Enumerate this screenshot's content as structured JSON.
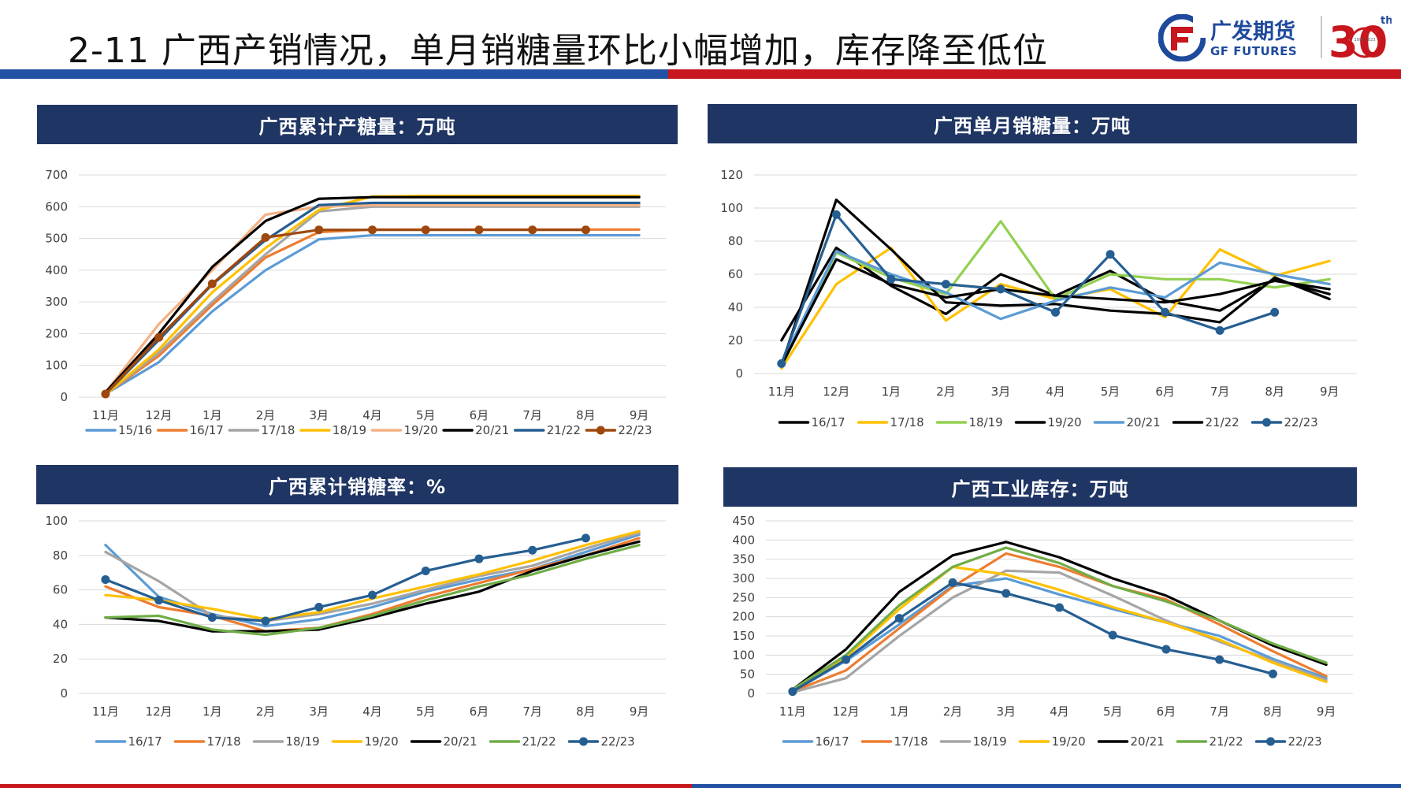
{
  "slide": {
    "title": "2-11 广西产销情况，单月销糖量环比小幅增加，库存降至低位"
  },
  "logo": {
    "name_cn": "广发期货",
    "name_en": "GF FUTURES",
    "anniversary_text": "30",
    "anniversary_suffix": "th",
    "anniversary_years": "1993 2023"
  },
  "colors": {
    "title_bar": "#1f3563",
    "top_bar_blue": "#2351a3",
    "top_bar_red": "#c8161e"
  },
  "chart_data": [
    {
      "type": "line",
      "title": "广西累计产糖量：万吨",
      "categories": [
        "11月",
        "12月",
        "1月",
        "2月",
        "3月",
        "4月",
        "5月",
        "6月",
        "7月",
        "8月",
        "9月"
      ],
      "ylim": [
        0,
        700
      ],
      "yticks": [
        0,
        100,
        200,
        300,
        400,
        500,
        600,
        700
      ],
      "grid": true,
      "legend_position": "bottom",
      "series": [
        {
          "name": "15/16",
          "color": "#5b9bd5",
          "marker": false,
          "values": [
            10,
            110,
            270,
            400,
            497,
            510,
            510,
            510,
            510,
            510,
            510
          ]
        },
        {
          "name": "16/17",
          "color": "#ed7d31",
          "marker": false,
          "values": [
            10,
            130,
            290,
            440,
            520,
            528,
            528,
            528,
            528,
            528,
            528
          ]
        },
        {
          "name": "17/18",
          "color": "#a5a5a5",
          "marker": false,
          "values": [
            10,
            140,
            300,
            450,
            585,
            600,
            600,
            600,
            600,
            600,
            600
          ]
        },
        {
          "name": "18/19",
          "color": "#ffc000",
          "marker": false,
          "values": [
            8,
            150,
            330,
            470,
            590,
            632,
            634,
            634,
            634,
            634,
            634
          ]
        },
        {
          "name": "19/20",
          "color": "#f4b183",
          "marker": false,
          "values": [
            15,
            230,
            400,
            575,
            600,
            605,
            605,
            605,
            605,
            605,
            605
          ]
        },
        {
          "name": "20/21",
          "color": "#000000",
          "marker": false,
          "values": [
            15,
            200,
            410,
            555,
            625,
            630,
            630,
            630,
            630,
            630,
            630
          ]
        },
        {
          "name": "21/22",
          "color": "#255e91",
          "marker": false,
          "values": [
            10,
            180,
            355,
            495,
            605,
            612,
            612,
            612,
            612,
            612,
            612
          ]
        },
        {
          "name": "22/23",
          "color": "#9e480e",
          "marker": true,
          "values": [
            10,
            188,
            357,
            503,
            527,
            527,
            527,
            527,
            527,
            527,
            null
          ]
        }
      ]
    },
    {
      "type": "line",
      "title": "广西单月销糖量：万吨",
      "categories": [
        "11月",
        "12月",
        "1月",
        "2月",
        "3月",
        "4月",
        "5月",
        "6月",
        "7月",
        "8月",
        "9月"
      ],
      "ylim": [
        0,
        120
      ],
      "yticks": [
        0,
        20,
        40,
        60,
        80,
        100,
        120
      ],
      "grid": true,
      "legend_position": "bottom",
      "series": [
        {
          "name": "16/17",
          "color": "#000000",
          "marker": false,
          "values": [
            20,
            76,
            53,
            36,
            60,
            47,
            62,
            44,
            38,
            57,
            48
          ]
        },
        {
          "name": "17/18",
          "color": "#ffc000",
          "marker": false,
          "values": [
            3,
            54,
            76,
            32,
            54,
            45,
            51,
            34,
            75,
            59,
            68
          ]
        },
        {
          "name": "18/19",
          "color": "#92d050",
          "marker": false,
          "values": [
            4,
            73,
            58,
            48,
            92,
            45,
            60,
            57,
            57,
            52,
            57
          ]
        },
        {
          "name": "19/20",
          "color": "#000000",
          "marker": false,
          "values": [
            5,
            105,
            75,
            43,
            41,
            42,
            38,
            36,
            31,
            58,
            45
          ]
        },
        {
          "name": "20/21",
          "color": "#5b9bd5",
          "marker": false,
          "values": [
            6,
            74,
            60,
            49,
            33,
            44,
            52,
            46,
            67,
            60,
            54
          ]
        },
        {
          "name": "21/22",
          "color": "#000000",
          "marker": false,
          "values": [
            5,
            69,
            54,
            46,
            51,
            47,
            45,
            43,
            48,
            56,
            51
          ]
        },
        {
          "name": "22/23",
          "color": "#255e91",
          "marker": true,
          "values": [
            6,
            96,
            57,
            54,
            51,
            37,
            72,
            37,
            26,
            37,
            null
          ]
        }
      ]
    },
    {
      "type": "line",
      "title": "广西累计销糖率：%",
      "categories": [
        "11月",
        "12月",
        "1月",
        "2月",
        "3月",
        "4月",
        "5月",
        "6月",
        "7月",
        "8月",
        "9月"
      ],
      "ylim": [
        0,
        100
      ],
      "yticks": [
        0,
        20,
        40,
        60,
        80,
        100
      ],
      "grid": true,
      "legend_position": "bottom",
      "series": [
        {
          "name": "16/17",
          "color": "#5b9bd5",
          "marker": false,
          "values": [
            86,
            56,
            46,
            39,
            43,
            50,
            59,
            66,
            72,
            82,
            92
          ]
        },
        {
          "name": "17/18",
          "color": "#ed7d31",
          "marker": false,
          "values": [
            62,
            50,
            45,
            36,
            38,
            46,
            56,
            64,
            72,
            80,
            90
          ]
        },
        {
          "name": "18/19",
          "color": "#a5a5a5",
          "marker": false,
          "values": [
            82,
            65,
            45,
            42,
            46,
            52,
            60,
            68,
            74,
            84,
            93
          ]
        },
        {
          "name": "19/20",
          "color": "#ffc000",
          "marker": false,
          "values": [
            57,
            54,
            49,
            43,
            47,
            55,
            62,
            69,
            77,
            86,
            94
          ]
        },
        {
          "name": "20/21",
          "color": "#000000",
          "marker": false,
          "values": [
            44,
            42,
            36,
            36,
            37,
            44,
            52,
            59,
            71,
            80,
            88
          ]
        },
        {
          "name": "21/22",
          "color": "#70ad47",
          "marker": false,
          "values": [
            44,
            45,
            37,
            34,
            38,
            45,
            54,
            62,
            69,
            78,
            86
          ]
        },
        {
          "name": "22/23",
          "color": "#255e91",
          "marker": true,
          "values": [
            66,
            54,
            44,
            42,
            50,
            57,
            71,
            78,
            83,
            90,
            null
          ]
        }
      ]
    },
    {
      "type": "line",
      "title": "广西工业库存：万吨",
      "categories": [
        "11月",
        "12月",
        "1月",
        "2月",
        "3月",
        "4月",
        "5月",
        "6月",
        "7月",
        "8月",
        "9月"
      ],
      "ylim": [
        0,
        450
      ],
      "yticks": [
        0,
        50,
        100,
        150,
        200,
        250,
        300,
        350,
        400,
        450
      ],
      "grid": true,
      "legend_position": "bottom",
      "series": [
        {
          "name": "16/17",
          "color": "#5b9bd5",
          "marker": false,
          "values": [
            5,
            85,
            180,
            280,
            300,
            258,
            220,
            185,
            150,
            90,
            40
          ]
        },
        {
          "name": "17/18",
          "color": "#ed7d31",
          "marker": false,
          "values": [
            5,
            60,
            170,
            278,
            365,
            330,
            280,
            245,
            180,
            110,
            45
          ]
        },
        {
          "name": "18/19",
          "color": "#a5a5a5",
          "marker": false,
          "values": [
            3,
            40,
            150,
            250,
            320,
            315,
            255,
            190,
            135,
            85,
            35
          ]
        },
        {
          "name": "19/20",
          "color": "#ffc000",
          "marker": false,
          "values": [
            5,
            95,
            220,
            330,
            310,
            270,
            225,
            185,
            140,
            80,
            30
          ]
        },
        {
          "name": "20/21",
          "color": "#000000",
          "marker": false,
          "values": [
            10,
            115,
            265,
            360,
            395,
            355,
            300,
            255,
            190,
            125,
            75
          ]
        },
        {
          "name": "21/22",
          "color": "#70ad47",
          "marker": false,
          "values": [
            10,
            100,
            230,
            330,
            380,
            340,
            280,
            240,
            190,
            130,
            80
          ]
        },
        {
          "name": "22/23",
          "color": "#255e91",
          "marker": true,
          "values": [
            5,
            88,
            196,
            289,
            261,
            224,
            152,
            115,
            88,
            51,
            null
          ]
        }
      ]
    }
  ]
}
